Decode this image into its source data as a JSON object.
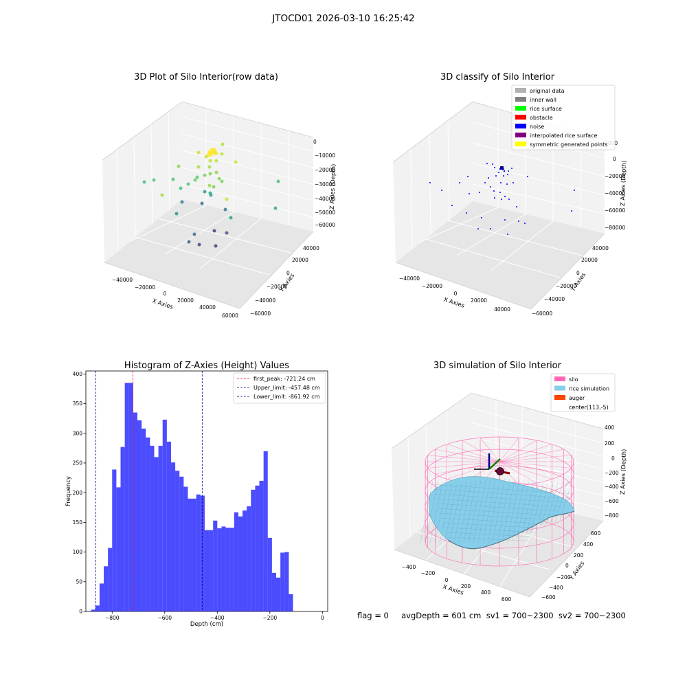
{
  "figure": {
    "suptitle": "JTOCD01 2026-03-10 16:25:42",
    "footer": "flag = 0     avgDepth = 601 cm  sv1 = 700~2300  sv2 = 700~2300"
  },
  "chart_data": [
    {
      "type": "scatter",
      "subtype": "3d",
      "title": "3D Plot of Silo Interior(row data)",
      "xlabel": "X Axies",
      "ylabel": "Y Axies",
      "zlabel": "Z Axies (Depth)",
      "x_ticks": [
        "−40000",
        "−20000",
        "0",
        "20000",
        "40000",
        "60000"
      ],
      "y_ticks": [
        "−60000",
        "−40000",
        "−20000",
        "0",
        "20000",
        "40000"
      ],
      "z_ticks": [
        "0",
        "−10000",
        "−20000",
        "−30000",
        "−40000",
        "−50000",
        "−60000"
      ],
      "grid": true,
      "colormap": "viridis"
    },
    {
      "type": "scatter",
      "subtype": "3d",
      "title": "3D classify of Silo Interior",
      "xlabel": "X Axies",
      "ylabel": "Y Axies",
      "zlabel": "Z Axies (Depth)",
      "x_ticks": [
        "−40000",
        "−20000",
        "0",
        "20000",
        "40000"
      ],
      "y_ticks": [
        "−60000",
        "−40000",
        "−20000",
        "0",
        "20000",
        "40000"
      ],
      "z_ticks": [
        "0",
        "−20000",
        "−40000",
        "−60000",
        "−80000"
      ],
      "z_top_tick": "0000",
      "grid": true,
      "legend_position": "top-right",
      "legend": [
        {
          "label": "original data",
          "color": "#b0b0b0"
        },
        {
          "label": "inner wall",
          "color": "#808080"
        },
        {
          "label": "rice surface",
          "color": "#00ff00"
        },
        {
          "label": "obstacle",
          "color": "#ff0000"
        },
        {
          "label": "noise",
          "color": "#0000ff"
        },
        {
          "label": "interpolated rice surface",
          "color": "#800080"
        },
        {
          "label": "symmetric generated points",
          "color": "#ffff00"
        }
      ]
    },
    {
      "type": "bar",
      "subtype": "histogram",
      "title": "Histogram of Z-Axies (Height) Values",
      "xlabel": "Depth (cm)",
      "ylabel": "Frequency",
      "xlim": [
        -900,
        20
      ],
      "ylim": [
        0,
        405
      ],
      "x_ticks": [
        -800,
        -600,
        -400,
        -200,
        0
      ],
      "x_tick_labels": [
        "−800",
        "−600",
        "−400",
        "−200",
        "0"
      ],
      "y_ticks": [
        0,
        50,
        100,
        150,
        200,
        250,
        300,
        350,
        400
      ],
      "bin_start": -880,
      "bin_width": 16,
      "values": [
        3,
        10,
        47,
        76,
        107,
        239,
        209,
        277,
        385,
        385,
        335,
        322,
        308,
        293,
        279,
        260,
        279,
        323,
        286,
        251,
        237,
        227,
        210,
        190,
        190,
        197,
        195,
        137,
        137,
        153,
        140,
        143,
        141,
        141,
        167,
        160,
        170,
        177,
        205,
        212,
        220,
        270,
        124,
        65,
        57,
        99,
        100,
        29
      ],
      "bar_color": "#0000ff",
      "bar_opacity": 0.7,
      "lines": [
        {
          "label": "first_peak: -721.24 cm",
          "x": -721.24,
          "color": "#ff0000"
        },
        {
          "label": "Upper_limit: -457.48 cm",
          "x": -457.48,
          "color": "#00008b"
        },
        {
          "label": "Lower_limit: -861.92 cm",
          "x": -861.92,
          "color": "#00008b"
        }
      ],
      "legend_position": "top-right"
    },
    {
      "type": "surface",
      "subtype": "3d",
      "title": "3D simulation of Silo Interior",
      "xlabel": "X Axies",
      "ylabel": "Y Axies",
      "zlabel": "Z Axies (Depth)",
      "x_ticks": [
        "−400",
        "−200",
        "0",
        "200",
        "400",
        "600"
      ],
      "y_ticks": [
        "−600",
        "−400",
        "−200",
        "0",
        "200",
        "400",
        "600"
      ],
      "z_ticks": [
        "400",
        "200",
        "0",
        "−200",
        "−400",
        "−600",
        "−800"
      ],
      "grid": true,
      "legend_position": "top-right",
      "legend": [
        {
          "label": "silo",
          "color": "#ff69b4"
        },
        {
          "label": "rice simulation",
          "color": "#87ceeb"
        },
        {
          "label": "auger",
          "color": "#ff4500"
        },
        {
          "label": "center(113,-5)",
          "color": "#ffffff"
        }
      ]
    }
  ]
}
